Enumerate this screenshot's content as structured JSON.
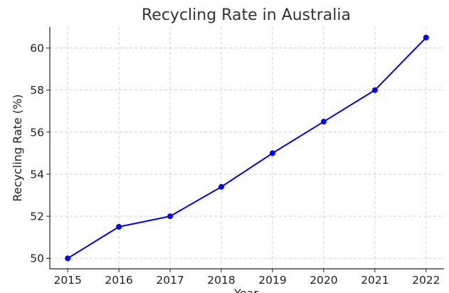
{
  "chart_data": {
    "type": "line",
    "title": "Recycling Rate in Australia",
    "xlabel": "Year",
    "ylabel": "Recycling Rate (%)",
    "x": [
      2015,
      2016,
      2017,
      2018,
      2019,
      2020,
      2021,
      2022
    ],
    "series": [
      {
        "values": [
          50.0,
          51.5,
          52.0,
          53.4,
          55.0,
          56.5,
          58.0,
          60.5
        ],
        "color": "#0000ff",
        "marker": "circle"
      }
    ],
    "xticks": [
      "2015",
      "2016",
      "2017",
      "2018",
      "2019",
      "2020",
      "2021",
      "2022"
    ],
    "yticks": [
      "50",
      "52",
      "54",
      "56",
      "58",
      "60"
    ],
    "xlim": [
      2014.65,
      2022.35
    ],
    "ylim": [
      49.5,
      61.0
    ],
    "grid": true,
    "grid_style": "dashed"
  }
}
